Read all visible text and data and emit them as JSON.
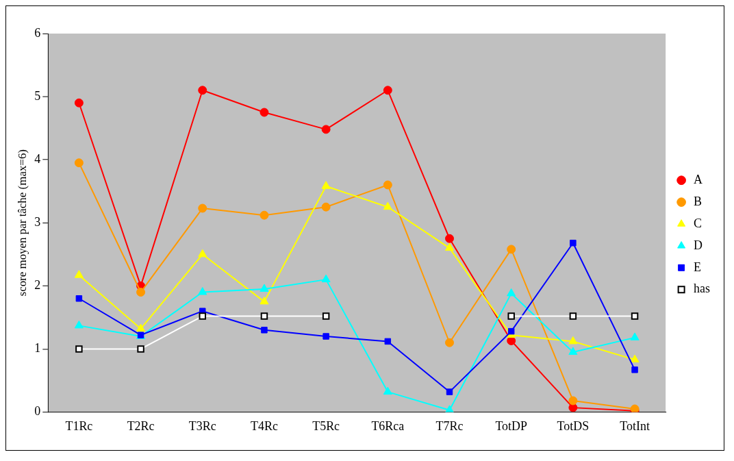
{
  "chart_data": {
    "type": "line",
    "ylabel": "score moyen par tâche (max=6)",
    "categories": [
      "T1Rc",
      "T2Rc",
      "T3Rc",
      "T4Rc",
      "T5Rc",
      "T6Rca",
      "T7Rc",
      "TotDP",
      "TotDS",
      "TotInt"
    ],
    "series": [
      {
        "name": "A",
        "color": "#ff0000",
        "marker": "circle",
        "values": [
          4.9,
          2.0,
          5.1,
          4.75,
          4.48,
          5.1,
          2.75,
          1.13,
          0.07,
          0.02
        ]
      },
      {
        "name": "B",
        "color": "#ff9900",
        "marker": "circle",
        "values": [
          3.95,
          1.9,
          3.23,
          3.12,
          3.25,
          3.6,
          1.1,
          2.58,
          0.18,
          0.05
        ]
      },
      {
        "name": "C",
        "color": "#ffff00",
        "marker": "triangle",
        "values": [
          2.17,
          1.32,
          2.5,
          1.75,
          3.58,
          3.25,
          2.6,
          1.22,
          1.12,
          0.83
        ]
      },
      {
        "name": "D",
        "color": "#00ffff",
        "marker": "triangle",
        "values": [
          1.37,
          1.2,
          1.9,
          1.95,
          2.1,
          0.32,
          0.03,
          1.88,
          0.95,
          1.18
        ]
      },
      {
        "name": "E",
        "color": "#0000ff",
        "marker": "square",
        "values": [
          1.8,
          1.22,
          1.6,
          1.3,
          1.2,
          1.12,
          0.32,
          1.28,
          2.68,
          0.67
        ]
      },
      {
        "name": "has",
        "color": "#ffffff",
        "marker": "square",
        "values": [
          1,
          1,
          1.52,
          1.52,
          1.52,
          null,
          null,
          1.52,
          1.52,
          1.52
        ]
      }
    ],
    "ylim": [
      0,
      6
    ],
    "yticks": [
      0,
      1,
      2,
      3,
      4,
      5,
      6
    ],
    "grid": false,
    "legend": "right",
    "line_style": "solid"
  }
}
